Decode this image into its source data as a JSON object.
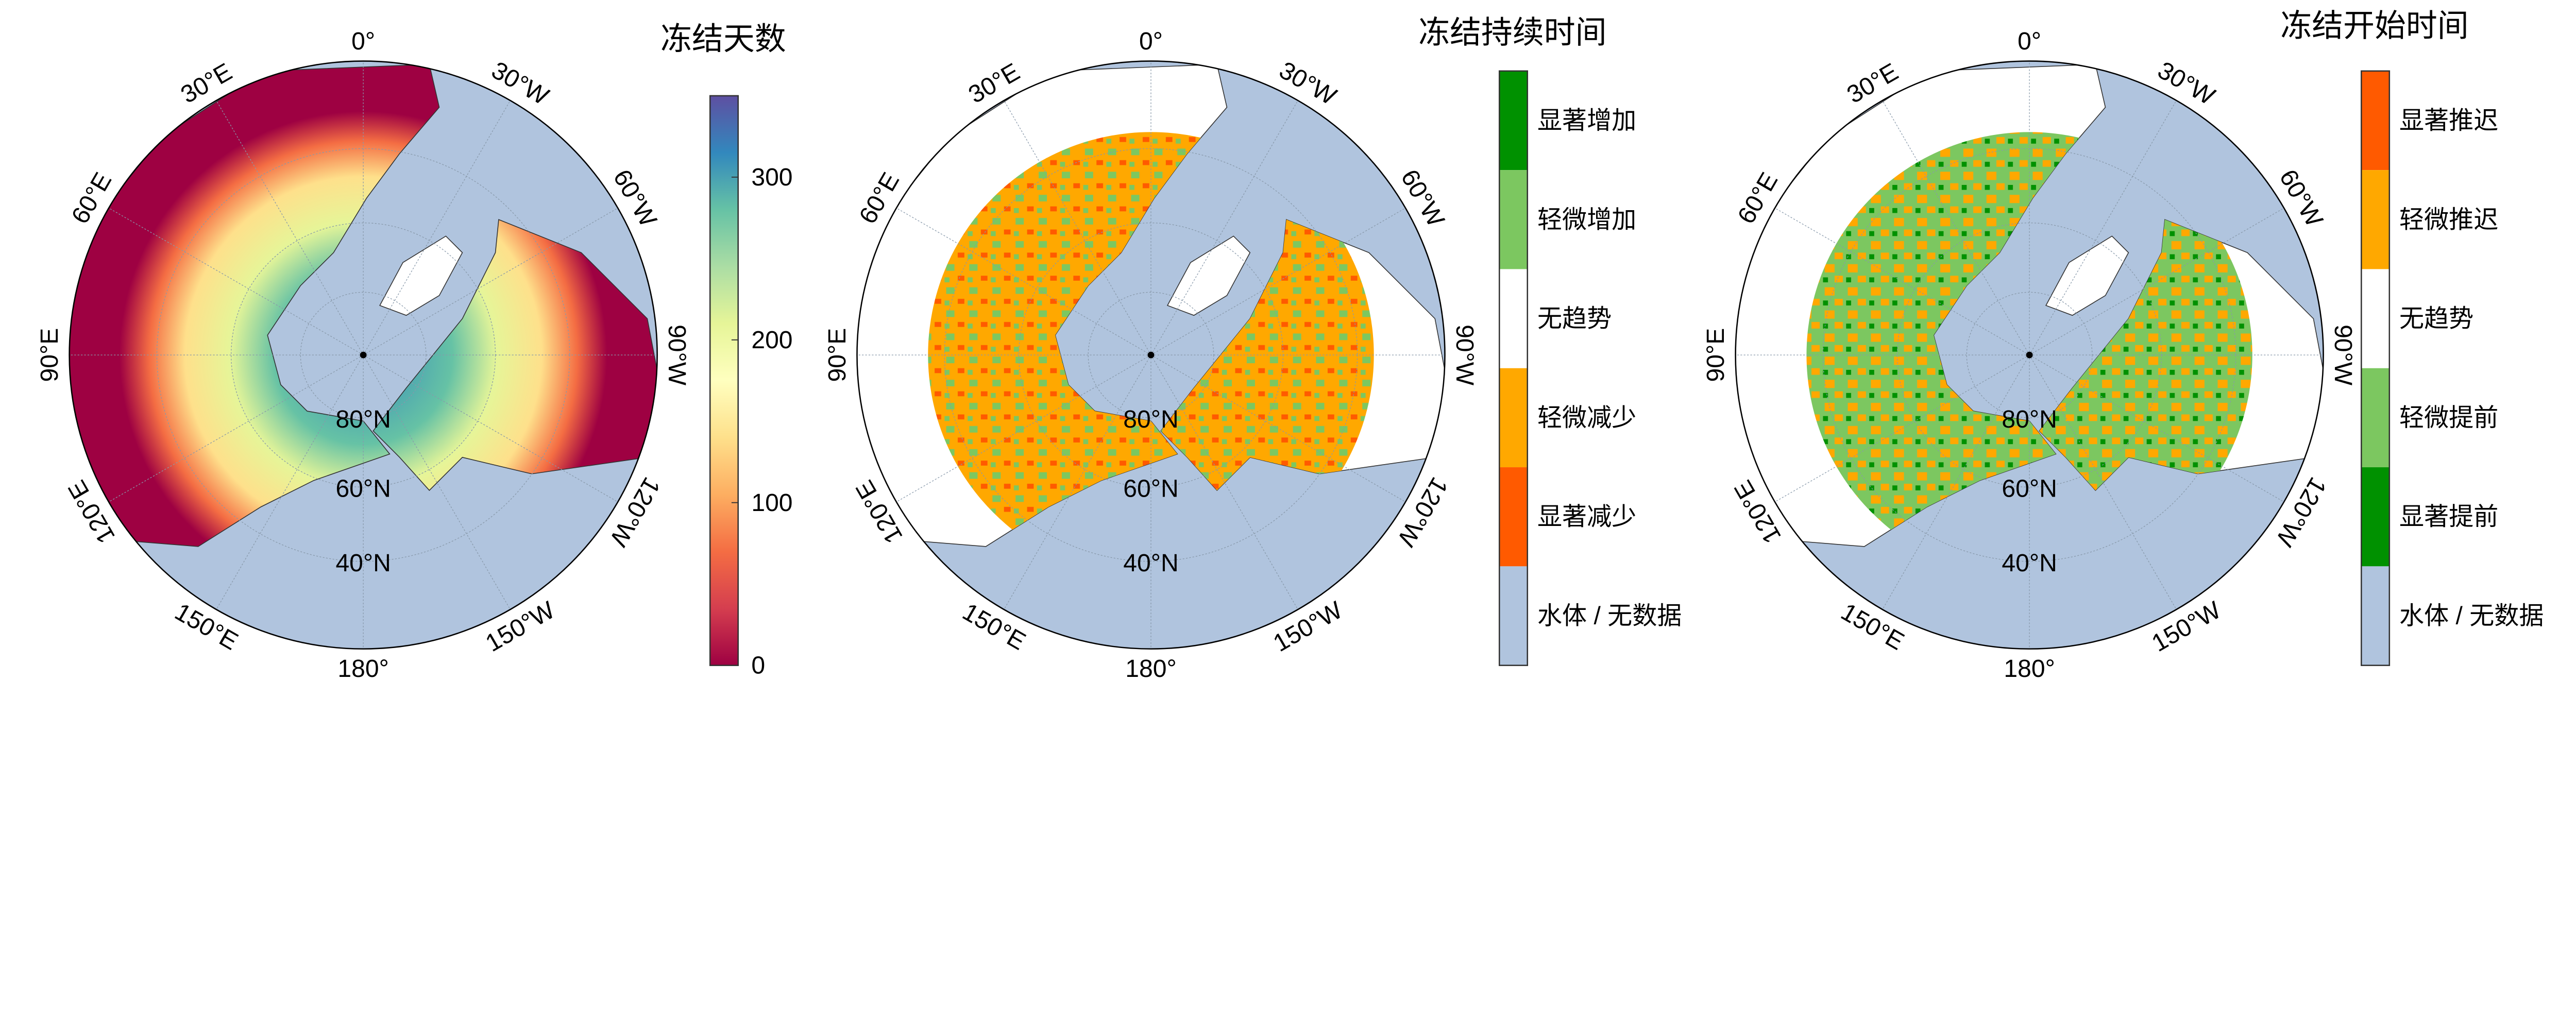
{
  "panels": [
    {
      "title": "冻结天数",
      "type": "continuous",
      "colorbar": {
        "ticks": [
          "0",
          "100",
          "200",
          "300"
        ],
        "tick_values": [
          0,
          100,
          200,
          300
        ],
        "range": [
          0,
          350
        ],
        "colors": [
          "#9e0142",
          "#d53e4f",
          "#f46d43",
          "#fdae61",
          "#fee08b",
          "#ffffbf",
          "#e6f598",
          "#abdda4",
          "#66c2a5",
          "#3288bd",
          "#5e4fa2"
        ]
      }
    },
    {
      "title": "冻结持续时间",
      "type": "categorical",
      "categories": [
        {
          "label": "显著增加",
          "color": "#009100"
        },
        {
          "label": "轻微增加",
          "color": "#7cc760"
        },
        {
          "label": "无趋势",
          "color": "#ffffff"
        },
        {
          "label": "轻微减少",
          "color": "#ffa800"
        },
        {
          "label": "显著减少",
          "color": "#ff5a00"
        },
        {
          "label": "水体 / 无数据",
          "color": "#b0c4de"
        }
      ]
    },
    {
      "title": "冻结开始时间",
      "type": "categorical",
      "categories": [
        {
          "label": "显著推迟",
          "color": "#ff5a00"
        },
        {
          "label": "轻微推迟",
          "color": "#ffa800"
        },
        {
          "label": "无趋势",
          "color": "#ffffff"
        },
        {
          "label": "轻微提前",
          "color": "#7cc760"
        },
        {
          "label": "显著提前",
          "color": "#009100"
        },
        {
          "label": "水体 / 无数据",
          "color": "#b0c4de"
        }
      ]
    }
  ],
  "map": {
    "projection": "north polar stereographic",
    "ocean_color": "#b0c4de",
    "longitude_labels": [
      {
        "text": "0°",
        "lon": 0
      },
      {
        "text": "30°E",
        "lon": 30
      },
      {
        "text": "60°E",
        "lon": 60
      },
      {
        "text": "90°E",
        "lon": 90
      },
      {
        "text": "120°E",
        "lon": 120
      },
      {
        "text": "150°E",
        "lon": 150
      },
      {
        "text": "180°",
        "lon": 180
      },
      {
        "text": "150°W",
        "lon": -150
      },
      {
        "text": "120°W",
        "lon": -120
      },
      {
        "text": "90°W",
        "lon": -90
      },
      {
        "text": "60°W",
        "lon": -60
      },
      {
        "text": "30°W",
        "lon": -30
      }
    ],
    "latitude_labels": [
      {
        "text": "80°N",
        "lat": 80
      },
      {
        "text": "60°N",
        "lat": 60
      },
      {
        "text": "40°N",
        "lat": 40
      }
    ]
  }
}
